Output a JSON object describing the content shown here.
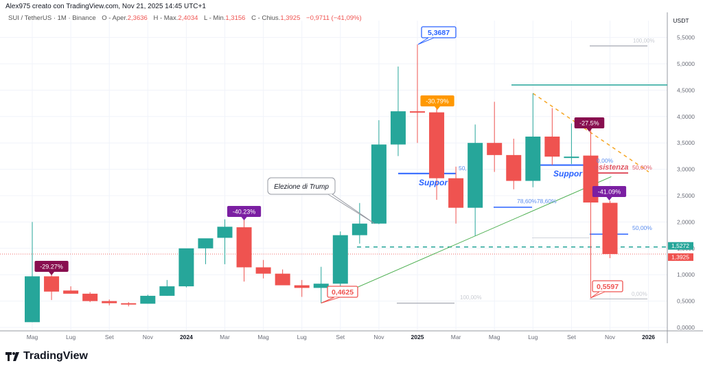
{
  "header": {
    "author_line": "Alex975 creato con TradingView.com, Nov 21, 2025 14:45 UTC+1",
    "symbol": "SUI / TetherUS · 1M · Binance",
    "open_label": "O - Aper.",
    "open": "2,3636",
    "high_label": "H - Max.",
    "high": "2,4034",
    "low_label": "L - Min.",
    "low": "1,3156",
    "close_label": "C - Chius.",
    "close": "1,3925",
    "change": "−0,9711 (−41,09%)"
  },
  "price_axis": {
    "unit": "USDT",
    "ticks": [
      "5,5000",
      "5,0000",
      "4,5000",
      "4,0000",
      "3,5000",
      "3,0000",
      "2,5000",
      "2,0000",
      "1,5000",
      "1,0000",
      "0,5000",
      "0,0000"
    ],
    "badges": [
      {
        "label": "1,5272",
        "value": 1.5272,
        "color": "#26a69a"
      },
      {
        "label": "1,3925",
        "value": 1.3925,
        "color": "#ef5350"
      }
    ]
  },
  "time_axis": {
    "ticks": [
      "Mag",
      "Lug",
      "Set",
      "Nov",
      "2024",
      "Mar",
      "Mag",
      "Lug",
      "Set",
      "Nov",
      "2025",
      "Mar",
      "Mag",
      "Lug",
      "Set",
      "Nov",
      "2026"
    ],
    "bold": [
      "2024",
      "2025",
      "2026"
    ]
  },
  "colors": {
    "up": "#26a69a",
    "down": "#ef5350",
    "grid": "#f0f3fa",
    "support": "#2962ff",
    "resistance": "#e05563",
    "trend": "#4caf50",
    "fib_line": "#f5a623"
  },
  "chart_data": {
    "type": "candlestick",
    "title": "SUI / TetherUS · 1M · Binance",
    "xlabel": "",
    "ylabel": "USDT",
    "ylim": [
      0,
      5.8
    ],
    "grid": true,
    "categories": [
      "2023-05",
      "2023-06",
      "2023-07",
      "2023-08",
      "2023-09",
      "2023-10",
      "2023-11",
      "2023-12",
      "2024-01",
      "2024-02",
      "2024-03",
      "2024-04",
      "2024-05",
      "2024-06",
      "2024-07",
      "2024-08",
      "2024-09",
      "2024-10",
      "2024-11",
      "2024-12",
      "2025-01",
      "2025-02",
      "2025-03",
      "2025-04",
      "2025-05",
      "2025-06",
      "2025-07",
      "2025-08",
      "2025-09",
      "2025-10",
      "2025-11"
    ],
    "series": [
      {
        "name": "open",
        "values": [
          0.1,
          0.97,
          0.7,
          0.64,
          0.5,
          0.46,
          0.45,
          0.6,
          0.78,
          1.5,
          1.7,
          1.9,
          1.14,
          1.02,
          0.8,
          0.75,
          0.83,
          1.75,
          1.97,
          3.47,
          4.1,
          4.08,
          2.83,
          2.27,
          3.5,
          3.27,
          2.78,
          3.62,
          3.24,
          3.26,
          2.3636
        ]
      },
      {
        "name": "high",
        "values": [
          2.0,
          1.1,
          0.78,
          0.67,
          0.53,
          0.48,
          0.62,
          0.9,
          1.2,
          1.65,
          2.05,
          2.18,
          1.28,
          1.1,
          0.9,
          1.15,
          1.82,
          2.36,
          3.93,
          4.95,
          5.3687,
          4.24,
          3.05,
          3.85,
          4.28,
          3.58,
          4.44,
          4.16,
          3.87,
          3.8,
          2.4034
        ]
      },
      {
        "name": "low",
        "values": [
          0.1,
          0.52,
          0.64,
          0.48,
          0.42,
          0.4,
          0.45,
          0.6,
          0.76,
          1.2,
          1.2,
          0.87,
          0.93,
          0.85,
          0.58,
          0.4625,
          0.74,
          1.59,
          1.96,
          3.25,
          3.5,
          2.42,
          1.97,
          1.74,
          2.95,
          2.62,
          2.66,
          3.08,
          3.1,
          0.5597,
          1.3156
        ]
      },
      {
        "name": "close",
        "values": [
          0.97,
          0.68,
          0.64,
          0.5,
          0.46,
          0.45,
          0.6,
          0.78,
          1.5,
          1.69,
          1.91,
          1.14,
          1.02,
          0.8,
          0.75,
          0.83,
          1.75,
          1.97,
          3.47,
          4.1,
          4.08,
          2.83,
          2.27,
          3.5,
          3.27,
          2.78,
          3.62,
          3.24,
          3.24,
          2.37,
          1.3925
        ]
      }
    ],
    "annotations": [
      {
        "type": "price-label",
        "text": "5,3687",
        "x": "2025-01",
        "y": 5.3687,
        "color": "#2962ff"
      },
      {
        "type": "price-label",
        "text": "0,4625",
        "x": "2024-08",
        "y": 0.4625,
        "color": "#ef5350"
      },
      {
        "type": "price-label",
        "text": "0,5597",
        "x": "2025-10",
        "y": 0.5597,
        "color": "#ef5350"
      },
      {
        "type": "change-badge",
        "text": "-29.27%",
        "x": "2023-06",
        "color": "#880e4f"
      },
      {
        "type": "change-badge",
        "text": "-40.23%",
        "x": "2024-04",
        "color": "#7b1fa2"
      },
      {
        "type": "change-badge",
        "text": "-30.79%",
        "x": "2025-02",
        "color": "#ff9800"
      },
      {
        "type": "change-badge",
        "text": "-27.5%",
        "x": "2025-10",
        "color": "#880e4f"
      },
      {
        "type": "change-badge",
        "text": "-41.09%",
        "x": "2025-11",
        "color": "#7b1fa2"
      },
      {
        "type": "callout",
        "text": "Elezione di Trump",
        "x": "2024-11"
      },
      {
        "type": "text",
        "text": "Suppor",
        "color": "#2962ff"
      },
      {
        "type": "text",
        "text": "Suppor",
        "color": "#2962ff"
      },
      {
        "type": "text",
        "text": "Resistenza",
        "color": "#e05563"
      },
      {
        "type": "fib",
        "text": "100,00%"
      },
      {
        "type": "fib",
        "text": "50,00%"
      },
      {
        "type": "fib",
        "text": "78,60%78,60%"
      },
      {
        "type": "fib",
        "text": "0,00%"
      },
      {
        "type": "hline",
        "y": 4.6,
        "color": "#26a69a"
      },
      {
        "type": "hline-dashed",
        "y": 1.5272,
        "color": "#26a69a"
      }
    ]
  },
  "branding": {
    "logo_text": "TradingView"
  }
}
